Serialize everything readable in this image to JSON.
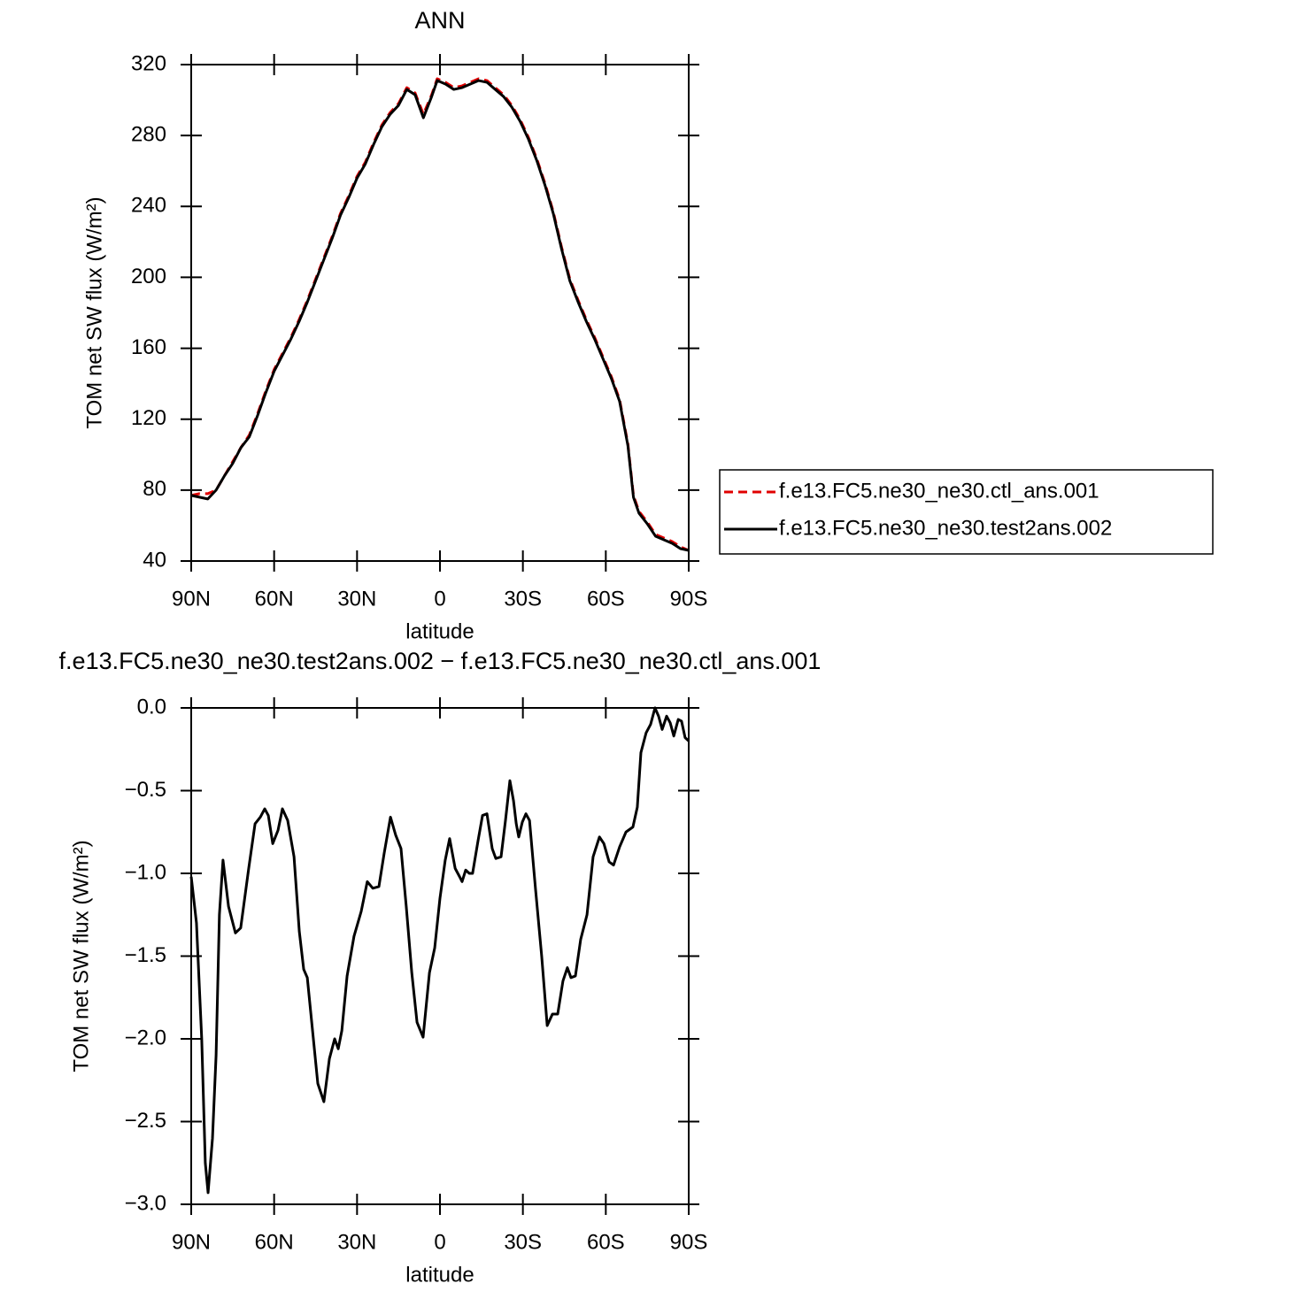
{
  "chart_data": [
    {
      "type": "line",
      "title": "ANN",
      "x_label": "latitude",
      "y_label": "TOM net SW flux (W/m²)",
      "x": [
        90,
        87,
        84,
        81,
        78,
        75,
        72,
        69,
        66,
        63,
        60,
        57,
        54,
        51,
        48,
        45,
        42,
        39,
        36,
        33,
        30,
        27,
        24,
        21,
        18,
        15,
        12,
        9,
        6,
        3,
        1,
        -2,
        -5,
        -8,
        -11,
        -14,
        -17,
        -20,
        -23,
        -26,
        -29,
        -32,
        -35,
        -38,
        -41,
        -44,
        -47,
        -50,
        -53,
        -56,
        -59,
        -62,
        -65,
        -68,
        -70,
        -72,
        -75,
        -78,
        -81,
        -84,
        -87,
        -90
      ],
      "series": [
        {
          "name": "f.e13.FC5.ne30_ne30.ctl_ans.001",
          "color": "#e00000",
          "linestyle": "dashed",
          "values": [
            77,
            78,
            78,
            80,
            88,
            96,
            104,
            111,
            123,
            136,
            148,
            157,
            166,
            176,
            187,
            199,
            211,
            223,
            236,
            246,
            257,
            265,
            276,
            286,
            293,
            298,
            307,
            304,
            292,
            303,
            312,
            310,
            307,
            308,
            310,
            312,
            311,
            307,
            303,
            297,
            289,
            279,
            267,
            253,
            237,
            217,
            199,
            187,
            176,
            166,
            155,
            144,
            131,
            106,
            77,
            68,
            62,
            55,
            53,
            51,
            48,
            46
          ]
        },
        {
          "name": "f.e13.FC5.ne30_ne30.test2ans.002",
          "color": "#000000",
          "linestyle": "solid",
          "values": [
            77,
            76,
            75,
            80,
            88,
            95,
            104,
            110,
            122,
            135,
            147,
            156,
            165,
            175,
            186,
            198,
            210,
            222,
            235,
            245,
            256,
            264,
            275,
            285,
            292,
            297,
            306,
            303,
            290,
            302,
            311,
            309,
            306,
            307,
            309,
            311,
            310,
            306,
            302,
            296,
            288,
            278,
            266,
            252,
            236,
            216,
            198,
            186,
            175,
            165,
            154,
            143,
            130,
            105,
            76,
            67,
            61,
            54,
            52,
            50,
            47,
            46
          ]
        }
      ],
      "xlim": [
        90,
        -90
      ],
      "xticks": [
        {
          "value": 90,
          "label": "90N"
        },
        {
          "value": 60,
          "label": "60N"
        },
        {
          "value": 30,
          "label": "30N"
        },
        0,
        {
          "value": -30,
          "label": "30S"
        },
        {
          "value": -60,
          "label": "60S"
        },
        {
          "value": -90,
          "label": "90S"
        }
      ],
      "ylim": [
        40,
        320
      ],
      "yticks": [
        40,
        80,
        120,
        160,
        200,
        240,
        280,
        320
      ],
      "legend": "right"
    },
    {
      "type": "line",
      "title": "f.e13.FC5.ne30_ne30.test2ans.002 − f.e13.FC5.ne30_ne30.ctl_ans.001",
      "x_label": "latitude",
      "y_label": "TOM net SW flux (W/m²)",
      "x": [
        90,
        88.1,
        86.2,
        84.9,
        83.9,
        82.3,
        81,
        79.8,
        78.5,
        76.5,
        74,
        72.1,
        69.2,
        66.9,
        65,
        63.4,
        62.1,
        60.5,
        58.6,
        57,
        55.1,
        52.8,
        50.9,
        49.3,
        48,
        46.4,
        44.2,
        42,
        40,
        38.1,
        36.8,
        35.5,
        33.6,
        31.1,
        28.5,
        26.3,
        24.3,
        22.1,
        20.2,
        17.9,
        16,
        14.1,
        12.2,
        10.2,
        8.3,
        6.1,
        3.8,
        1.9,
        0,
        -1.9,
        -3.5,
        -5.5,
        -7.1,
        -8,
        -9.3,
        -10.6,
        -11.8,
        -13.8,
        -15.4,
        -17,
        -18.9,
        -20.2,
        -22.1,
        -23.7,
        -25.3,
        -26.6,
        -27.6,
        -28.5,
        -29.8,
        -31.1,
        -32.4,
        -34.6,
        -36.8,
        -38.8,
        -40.7,
        -42.6,
        -44.5,
        -46.1,
        -47.4,
        -49,
        -50.9,
        -53.2,
        -55.4,
        -57.7,
        -59.3,
        -61.2,
        -62.8,
        -65,
        -67.3,
        -69.8,
        -71.4,
        -72.7,
        -74.6,
        -76.2,
        -77.8,
        -79.1,
        -80.4,
        -82,
        -83.3,
        -84.6,
        -86.2,
        -87.4,
        -88.7,
        -90
      ],
      "values": [
        -1.02,
        -1.3,
        -2.0,
        -2.75,
        -2.93,
        -2.6,
        -2.1,
        -1.25,
        -0.92,
        -1.2,
        -1.36,
        -1.33,
        -0.97,
        -0.7,
        -0.66,
        -0.61,
        -0.65,
        -0.82,
        -0.74,
        -0.61,
        -0.68,
        -0.9,
        -1.35,
        -1.58,
        -1.63,
        -1.9,
        -2.27,
        -2.38,
        -2.12,
        -2.0,
        -2.06,
        -1.95,
        -1.62,
        -1.38,
        -1.23,
        -1.05,
        -1.09,
        -1.08,
        -0.88,
        -0.66,
        -0.77,
        -0.85,
        -1.2,
        -1.6,
        -1.9,
        -1.99,
        -1.6,
        -1.45,
        -1.15,
        -0.92,
        -0.79,
        -0.97,
        -1.02,
        -1.05,
        -0.98,
        -1.0,
        -1.0,
        -0.8,
        -0.65,
        -0.64,
        -0.85,
        -0.91,
        -0.9,
        -0.68,
        -0.44,
        -0.56,
        -0.7,
        -0.78,
        -0.69,
        -0.64,
        -0.68,
        -1.1,
        -1.5,
        -1.92,
        -1.85,
        -1.85,
        -1.65,
        -1.57,
        -1.63,
        -1.62,
        -1.4,
        -1.25,
        -0.9,
        -0.78,
        -0.82,
        -0.93,
        -0.95,
        -0.84,
        -0.75,
        -0.72,
        -0.6,
        -0.27,
        -0.15,
        -0.1,
        0.0,
        -0.05,
        -0.13,
        -0.05,
        -0.09,
        -0.17,
        -0.07,
        -0.08,
        -0.18,
        -0.2
      ],
      "color": "#000000",
      "xlim": [
        90,
        -90
      ],
      "xticks": [
        {
          "value": 90,
          "label": "90N"
        },
        {
          "value": 60,
          "label": "60N"
        },
        {
          "value": 30,
          "label": "30N"
        },
        0,
        {
          "value": -30,
          "label": "30S"
        },
        {
          "value": -60,
          "label": "60S"
        },
        {
          "value": -90,
          "label": "90S"
        }
      ],
      "ylim": [
        -3.0,
        0.0
      ],
      "yticks": [
        {
          "value": -3.0,
          "label": "−3.0"
        },
        {
          "value": -2.5,
          "label": "−2.5"
        },
        {
          "value": -2.0,
          "label": "−2.0"
        },
        {
          "value": -1.5,
          "label": "−1.5"
        },
        {
          "value": -1.0,
          "label": "−1.0"
        },
        {
          "value": -0.5,
          "label": "−0.5"
        },
        {
          "value": 0.0,
          "label": "0.0"
        }
      ]
    }
  ]
}
